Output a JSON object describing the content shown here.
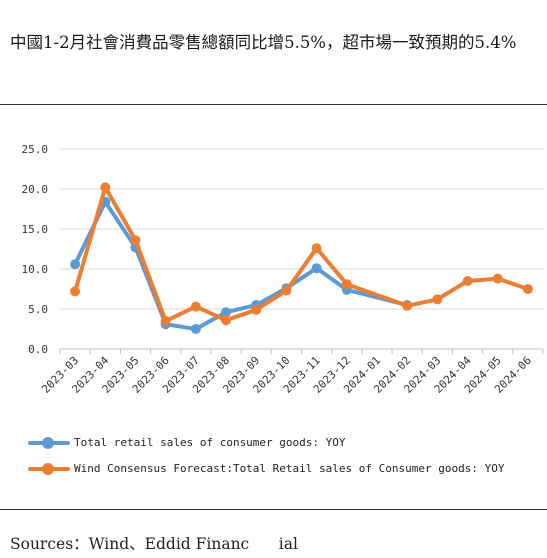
{
  "title": "中國1-2月社會消費品零售總額同比增5.5%，超市場一致預期的5.4%",
  "sources": "Sources：Wind、Eddid Financ      ial",
  "colors": {
    "series1": "#5B9BD5",
    "series2": "#ED7D31",
    "grid": "#d9d9d9",
    "axis": "#bfbfbf"
  },
  "chart_data": {
    "type": "line",
    "categories": [
      "2023-03",
      "2023-04",
      "2023-05",
      "2023-06",
      "2023-07",
      "2023-08",
      "2023-09",
      "2023-10",
      "2023-11",
      "2023-12",
      "2024-01",
      "2024-02",
      "2024-03",
      "2024-04",
      "2024-05",
      "2024-06"
    ],
    "y_ticks": [
      "0.0",
      "5.0",
      "10.0",
      "15.0",
      "20.0",
      "25.0"
    ],
    "ylim": [
      0,
      25
    ],
    "grid": "horizontal",
    "legend_position": "bottom",
    "series": [
      {
        "name": "Total retail sales of consumer goods: YOY",
        "values": [
          10.6,
          18.4,
          12.7,
          3.1,
          2.5,
          4.6,
          5.5,
          7.6,
          10.1,
          7.4,
          null,
          5.5,
          null,
          null,
          null,
          null
        ]
      },
      {
        "name": "Wind Consensus Forecast:Total Retail sales of Consumer goods: YOY",
        "values": [
          7.2,
          20.2,
          13.6,
          3.5,
          5.3,
          3.6,
          4.9,
          7.3,
          12.6,
          8.1,
          null,
          5.4,
          6.2,
          8.5,
          8.8,
          7.5
        ]
      }
    ]
  }
}
